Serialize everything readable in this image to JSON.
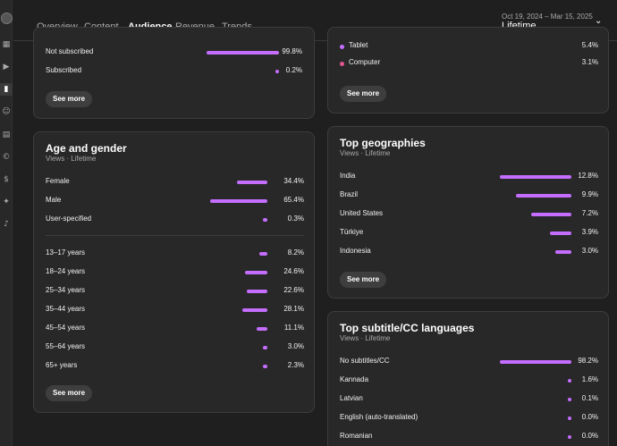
{
  "tabs": [
    {
      "label": "Overview",
      "active": false
    },
    {
      "label": "Content",
      "active": false
    },
    {
      "label": "Audience",
      "active": true
    },
    {
      "label": "Revenue",
      "active": false
    },
    {
      "label": "Trends",
      "active": false
    }
  ],
  "date": {
    "range": "Oct 19, 2024 – Mar 15, 2025",
    "label": "Lifetime"
  },
  "accent": "#c46dff",
  "subscription": {
    "rows": [
      {
        "label": "Not subscribed",
        "value": "99.8%",
        "pct": 99.8
      },
      {
        "label": "Subscribed",
        "value": "0.2%",
        "pct": 0.2
      }
    ],
    "see_more": "See more"
  },
  "device": {
    "rows": [
      {
        "label": "Tablet",
        "value": "5.4%",
        "color": "#c46dff"
      },
      {
        "label": "Computer",
        "value": "3.1%",
        "color": "#e3568f"
      }
    ],
    "see_more": "See more"
  },
  "age_gender": {
    "title": "Age and gender",
    "subtitle": "Views · Lifetime",
    "gender": [
      {
        "label": "Female",
        "value": "34.4%",
        "pct": 34.4
      },
      {
        "label": "Male",
        "value": "65.4%",
        "pct": 65.4
      },
      {
        "label": "User-specified",
        "value": "0.3%",
        "pct": 0.3
      }
    ],
    "ages": [
      {
        "label": "13–17 years",
        "value": "8.2%",
        "pct": 8.2
      },
      {
        "label": "18–24 years",
        "value": "24.6%",
        "pct": 24.6
      },
      {
        "label": "25–34 years",
        "value": "22.6%",
        "pct": 22.6
      },
      {
        "label": "35–44 years",
        "value": "28.1%",
        "pct": 28.1
      },
      {
        "label": "45–54 years",
        "value": "11.1%",
        "pct": 11.1
      },
      {
        "label": "55–64 years",
        "value": "3.0%",
        "pct": 3.0
      },
      {
        "label": "65+ years",
        "value": "2.3%",
        "pct": 2.3
      }
    ],
    "see_more": "See more"
  },
  "geographies": {
    "title": "Top geographies",
    "subtitle": "Views · Lifetime",
    "rows": [
      {
        "label": "India",
        "value": "12.8%",
        "pct": 12.8
      },
      {
        "label": "Brazil",
        "value": "9.9%",
        "pct": 9.9
      },
      {
        "label": "United States",
        "value": "7.2%",
        "pct": 7.2
      },
      {
        "label": "Türkiye",
        "value": "3.9%",
        "pct": 3.9
      },
      {
        "label": "Indonesia",
        "value": "3.0%",
        "pct": 3.0
      }
    ],
    "see_more": "See more"
  },
  "subtitles": {
    "title": "Top subtitle/CC languages",
    "subtitle": "Views · Lifetime",
    "rows": [
      {
        "label": "No subtitles/CC",
        "value": "98.2%",
        "pct": 98.2
      },
      {
        "label": "Kannada",
        "value": "1.6%",
        "pct": 1.6
      },
      {
        "label": "Latvian",
        "value": "0.1%",
        "pct": 0.1
      },
      {
        "label": "English (auto-translated)",
        "value": "0.0%",
        "pct": 0.0
      },
      {
        "label": "Romanian",
        "value": "0.0%",
        "pct": 0.0
      }
    ]
  },
  "rail_icons": [
    "avatar",
    "dashboard-icon",
    "content-icon",
    "analytics-icon",
    "community-icon",
    "subtitles-icon",
    "copyright-icon",
    "earn-icon",
    "customization-icon",
    "audio-library-icon"
  ]
}
